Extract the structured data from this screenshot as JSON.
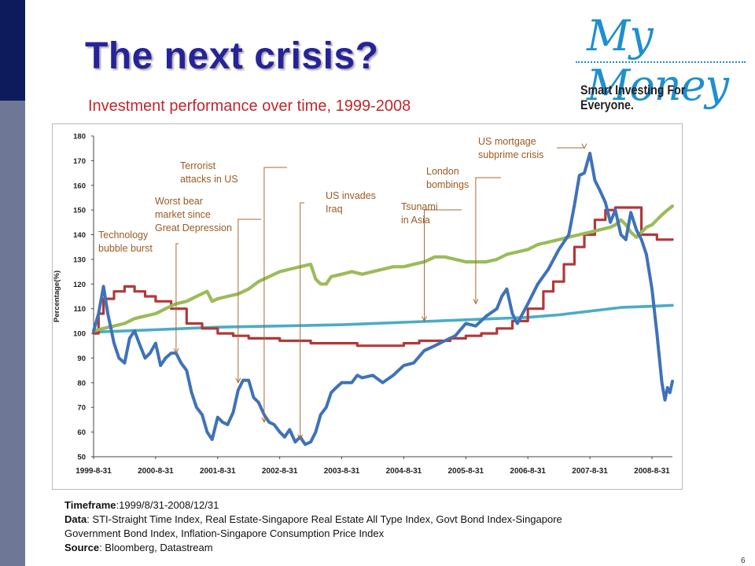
{
  "slide": {
    "title": "The next crisis?",
    "subtitle": "Investment performance over time, 1999-2008",
    "logo": "My Money",
    "tagline": "Smart Investing For Everyone.",
    "page_number": "6"
  },
  "notes": {
    "timeframe_label": "Timeframe",
    "timeframe": ":1999/8/31-2008/12/31",
    "data_label": "Data",
    "data_line1": ": STI-Straight Time Index, Real Estate-Singapore Real Estate All Type Index, Govt Bond Index-Singapore",
    "data_line2": "Government Bond Index, Inflation-Singapore Consumption Price Index",
    "source_label": "Source",
    "source": ": Bloomberg, Datastream"
  },
  "chart_data": {
    "type": "line",
    "ylabel": "Percentage(%)",
    "ylim": [
      50,
      180
    ],
    "yticks": [
      50,
      60,
      70,
      80,
      90,
      100,
      110,
      120,
      130,
      140,
      150,
      160,
      170,
      180
    ],
    "xlim": [
      1999.67,
      2009.0
    ],
    "xtick_labels": [
      "1999-8-31",
      "2000-8-31",
      "2001-8-31",
      "2002-8-31",
      "2003-8-31",
      "2004-8-31",
      "2005-8-31",
      "2006-8-31",
      "2007-8-31",
      "2008-8-31"
    ],
    "xtick_values": [
      1999.67,
      2000.67,
      2001.67,
      2002.67,
      2003.67,
      2004.67,
      2005.67,
      2006.67,
      2007.67,
      2008.67
    ],
    "series": [
      {
        "name": "STI",
        "end_value": "80.60",
        "color": "#3f72b8",
        "step": false,
        "x": [
          1999.67,
          1999.75,
          1999.83,
          1999.9,
          2000.0,
          2000.08,
          2000.17,
          2000.25,
          2000.33,
          2000.42,
          2000.5,
          2000.58,
          2000.67,
          2000.75,
          2000.83,
          2000.92,
          2001.0,
          2001.08,
          2001.17,
          2001.25,
          2001.33,
          2001.42,
          2001.5,
          2001.58,
          2001.67,
          2001.75,
          2001.83,
          2001.92,
          2002.0,
          2002.08,
          2002.17,
          2002.25,
          2002.33,
          2002.42,
          2002.5,
          2002.58,
          2002.67,
          2002.75,
          2002.83,
          2002.92,
          2003.0,
          2003.08,
          2003.17,
          2003.25,
          2003.33,
          2003.42,
          2003.5,
          2003.58,
          2003.67,
          2003.75,
          2003.83,
          2003.92,
          2004.0,
          2004.17,
          2004.33,
          2004.5,
          2004.67,
          2004.83,
          2005.0,
          2005.17,
          2005.33,
          2005.5,
          2005.67,
          2005.83,
          2006.0,
          2006.17,
          2006.25,
          2006.33,
          2006.42,
          2006.5,
          2006.67,
          2006.83,
          2007.0,
          2007.17,
          2007.33,
          2007.42,
          2007.5,
          2007.58,
          2007.67,
          2007.75,
          2007.83,
          2007.92,
          2008.0,
          2008.08,
          2008.17,
          2008.25,
          2008.33,
          2008.42,
          2008.5,
          2008.58,
          2008.67,
          2008.75,
          2008.83,
          2008.88,
          2008.92,
          2008.96,
          2009.0
        ],
        "y": [
          101,
          108,
          119,
          108,
          96,
          90,
          88,
          98,
          101,
          95,
          90,
          92,
          96,
          87,
          90,
          92,
          92,
          88,
          85,
          76,
          70,
          67,
          60,
          57,
          66,
          64,
          63,
          68,
          77,
          81,
          81,
          74,
          72,
          67,
          64,
          63,
          60,
          58,
          61,
          56,
          58,
          55,
          56,
          60,
          67,
          70,
          76,
          78,
          80,
          80,
          80,
          83,
          82,
          83,
          80,
          83,
          87,
          88,
          93,
          95,
          97,
          99,
          104,
          103,
          107,
          110,
          115,
          118,
          108,
          104,
          112,
          120,
          126,
          134,
          140,
          152,
          164,
          165,
          173,
          162,
          158,
          153,
          145,
          150,
          140,
          138,
          149,
          142,
          138,
          132,
          118,
          100,
          80,
          73,
          78,
          76,
          80.6
        ]
      },
      {
        "name": "Real Estate",
        "end_value": "138.08",
        "color": "#b0393a",
        "step": true,
        "x": [
          1999.67,
          1999.75,
          1999.83,
          2000.0,
          2000.17,
          2000.33,
          2000.5,
          2000.67,
          2000.92,
          2001.17,
          2001.42,
          2001.67,
          2001.92,
          2002.17,
          2002.42,
          2002.67,
          2002.92,
          2003.17,
          2003.42,
          2003.67,
          2003.92,
          2004.17,
          2004.42,
          2004.67,
          2004.92,
          2005.17,
          2005.42,
          2005.67,
          2005.92,
          2006.17,
          2006.42,
          2006.67,
          2006.92,
          2007.08,
          2007.25,
          2007.42,
          2007.58,
          2007.75,
          2007.92,
          2008.08,
          2008.25,
          2008.5,
          2008.75,
          2009.0
        ],
        "y": [
          100,
          108,
          114,
          117,
          119,
          117,
          115,
          113,
          110,
          104,
          102,
          100,
          99,
          98,
          98,
          97,
          97,
          96,
          96,
          96,
          95,
          95,
          95,
          96,
          97,
          97,
          98,
          99,
          100,
          102,
          105,
          110,
          117,
          121,
          128,
          135,
          140,
          146,
          150,
          151,
          151,
          140,
          138,
          138.08
        ]
      },
      {
        "name": "Govt Bond",
        "end_value": "151.58",
        "color": "#9bbb59",
        "step": false,
        "x": [
          1999.67,
          1999.83,
          2000.0,
          2000.17,
          2000.33,
          2000.5,
          2000.67,
          2000.83,
          2001.0,
          2001.17,
          2001.33,
          2001.5,
          2001.58,
          2001.67,
          2001.83,
          2002.0,
          2002.17,
          2002.33,
          2002.5,
          2002.67,
          2002.83,
          2003.0,
          2003.17,
          2003.25,
          2003.33,
          2003.42,
          2003.5,
          2003.67,
          2003.83,
          2004.0,
          2004.17,
          2004.33,
          2004.5,
          2004.67,
          2004.83,
          2005.0,
          2005.17,
          2005.33,
          2005.5,
          2005.67,
          2005.83,
          2006.0,
          2006.17,
          2006.33,
          2006.5,
          2006.67,
          2006.83,
          2007.0,
          2007.17,
          2007.33,
          2007.5,
          2007.67,
          2007.83,
          2008.0,
          2008.08,
          2008.17,
          2008.25,
          2008.33,
          2008.42,
          2008.5,
          2008.58,
          2008.67,
          2008.75,
          2008.83,
          2008.92,
          2009.0
        ],
        "y": [
          101,
          102,
          103,
          104,
          106,
          107,
          108,
          110,
          112,
          113,
          115,
          117,
          113,
          114,
          115,
          116,
          118,
          121,
          123,
          125,
          126,
          127,
          128,
          122,
          120,
          120,
          123,
          124,
          125,
          124,
          125,
          126,
          127,
          127,
          128,
          129,
          131,
          131,
          130,
          129,
          129,
          129,
          130,
          132,
          133,
          134,
          136,
          137,
          138,
          139,
          140,
          141,
          142,
          143,
          144,
          146,
          144,
          141,
          139,
          141,
          143,
          144,
          146,
          148,
          150,
          151.58
        ]
      },
      {
        "name": "Inflation",
        "end_value": "111.36",
        "color": "#4bacc6",
        "step": false,
        "x": [
          1999.67,
          2000.67,
          2001.67,
          2002.67,
          2003.67,
          2004.67,
          2005.67,
          2006.67,
          2007.17,
          2007.67,
          2008.17,
          2008.67,
          2009.0
        ],
        "y": [
          100.5,
          101.5,
          102.5,
          103,
          103.5,
          104.5,
          105.5,
          106.5,
          107.5,
          109,
          110.5,
          111,
          111.36
        ]
      }
    ],
    "annotations": [
      {
        "lines": [
          "Technology",
          "bubble burst"
        ],
        "target_x": 2001.0,
        "target_y": 92
      },
      {
        "lines": [
          "Worst bear",
          "market since",
          "Great Depression"
        ],
        "target_x": 2002.0,
        "target_y": 80
      },
      {
        "lines": [
          "Terrorist",
          "attacks in US"
        ],
        "target_x": 2002.42,
        "target_y": 64
      },
      {
        "lines": [
          "US invades",
          "Iraq"
        ],
        "target_x": 2003.0,
        "target_y": 57
      },
      {
        "lines": [
          "Tsunami",
          "in Asia"
        ],
        "target_x": 2005.0,
        "target_y": 105
      },
      {
        "lines": [
          "London",
          "bombings"
        ],
        "target_x": 2005.83,
        "target_y": 112
      },
      {
        "lines": [
          "US mortgage",
          "subprime crisis"
        ],
        "target_x": 2007.58,
        "target_y": 175
      }
    ]
  }
}
